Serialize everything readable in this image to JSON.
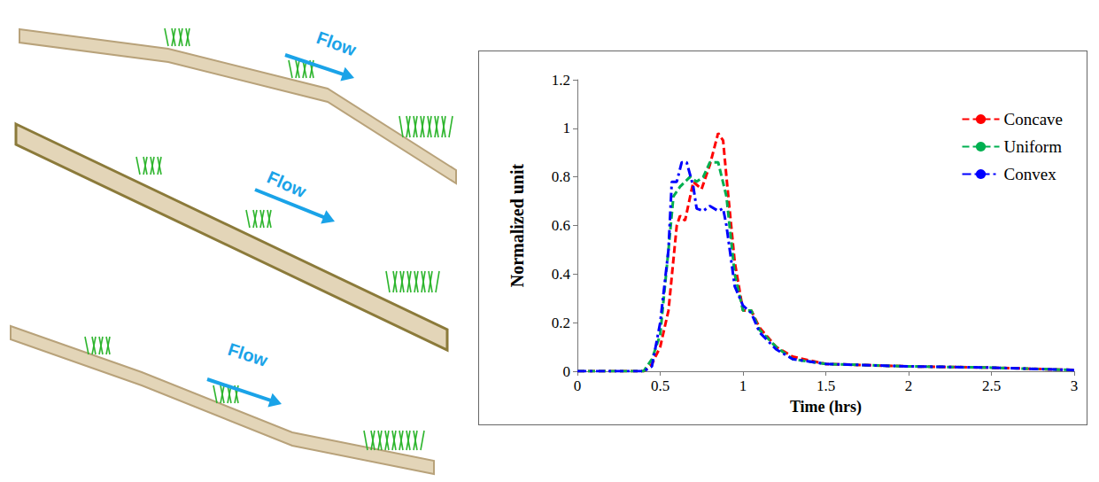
{
  "chart_data": {
    "type": "line",
    "x_label": "Time (hrs)",
    "y_label": "Normalized unit",
    "xlim": [
      0,
      3
    ],
    "xticks": [
      0,
      0.5,
      1,
      1.5,
      2,
      2.5,
      3
    ],
    "ylim": [
      0,
      1.2
    ],
    "yticks": [
      0,
      0.2,
      0.4,
      0.6,
      0.8,
      1,
      1.2
    ],
    "grid": false,
    "legend": "top-right",
    "series": [
      {
        "name": "Concave",
        "color": "#ff0000",
        "line_style": "dashed",
        "x": [
          0,
          0.4,
          0.45,
          0.5,
          0.55,
          0.6,
          0.62,
          0.65,
          0.7,
          0.75,
          0.8,
          0.85,
          0.88,
          0.9,
          0.95,
          1.0,
          1.05,
          1.1,
          1.2,
          1.3,
          1.5,
          2,
          2.5,
          3
        ],
        "values": [
          0,
          0,
          0.03,
          0.1,
          0.25,
          0.6,
          0.64,
          0.62,
          0.78,
          0.75,
          0.85,
          0.98,
          0.95,
          0.8,
          0.45,
          0.25,
          0.25,
          0.18,
          0.1,
          0.06,
          0.03,
          0.02,
          0.015,
          0.005
        ]
      },
      {
        "name": "Uniform",
        "color": "#00b050",
        "line_style": "dashed",
        "x": [
          0,
          0.4,
          0.45,
          0.5,
          0.55,
          0.58,
          0.62,
          0.68,
          0.72,
          0.76,
          0.8,
          0.85,
          0.9,
          0.95,
          1.0,
          1.05,
          1.1,
          1.2,
          1.3,
          1.5,
          2,
          2.5,
          3
        ],
        "values": [
          0,
          0,
          0.05,
          0.15,
          0.5,
          0.72,
          0.76,
          0.8,
          0.78,
          0.8,
          0.86,
          0.86,
          0.72,
          0.4,
          0.25,
          0.25,
          0.17,
          0.1,
          0.05,
          0.03,
          0.02,
          0.015,
          0.005
        ]
      },
      {
        "name": "Convex",
        "color": "#0000ff",
        "line_style": "dashdot",
        "x": [
          0,
          0.4,
          0.45,
          0.5,
          0.55,
          0.57,
          0.6,
          0.63,
          0.66,
          0.7,
          0.72,
          0.76,
          0.8,
          0.85,
          0.88,
          0.9,
          0.95,
          1.0,
          1.05,
          1.1,
          1.2,
          1.3,
          1.5,
          2,
          2.5,
          3
        ],
        "values": [
          0,
          0,
          0.02,
          0.2,
          0.5,
          0.78,
          0.78,
          0.86,
          0.86,
          0.76,
          0.67,
          0.66,
          0.68,
          0.66,
          0.67,
          0.6,
          0.35,
          0.27,
          0.24,
          0.16,
          0.09,
          0.05,
          0.03,
          0.02,
          0.015,
          0.005
        ]
      }
    ]
  },
  "diagram": {
    "arrow_labels": [
      "Flow",
      "Flow",
      "Flow"
    ]
  }
}
